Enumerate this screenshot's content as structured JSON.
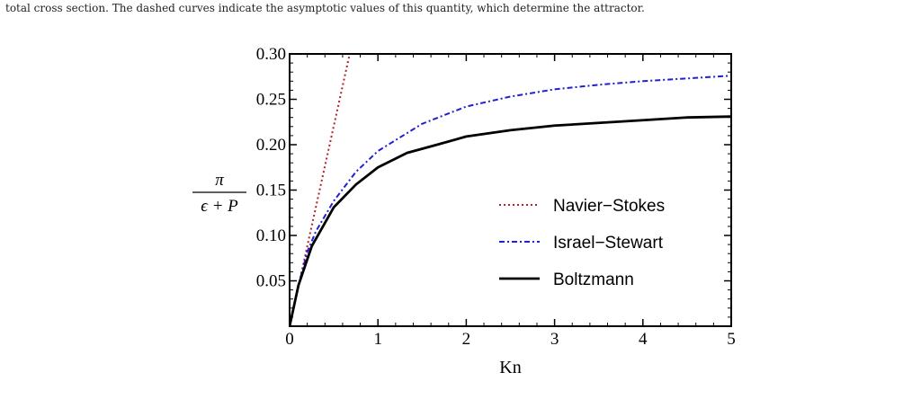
{
  "caption": "total cross section. The dashed curves indicate the asymptotic values of this quantity, which determine the attractor.",
  "chart_data": {
    "type": "line",
    "xlabel": "Kn",
    "ylabel_numerator": "π",
    "ylabel_denominator": "ϵ + P",
    "xlim": [
      0,
      5
    ],
    "ylim": [
      0,
      0.3
    ],
    "xticks": [
      0,
      1,
      2,
      3,
      4,
      5
    ],
    "xtick_labels": [
      "0",
      "1",
      "2",
      "3",
      "4",
      "5"
    ],
    "yticks": [
      0.05,
      0.1,
      0.15,
      0.2,
      0.25,
      0.3
    ],
    "ytick_labels": [
      "0.05",
      "0.10",
      "0.15",
      "0.20",
      "0.25",
      "0.30"
    ],
    "legend_position": "center-right",
    "series": [
      {
        "name": "Navier−Stokes",
        "color": "#b22222",
        "style": "dotted",
        "x": [
          0,
          0.68
        ],
        "y": [
          0,
          0.3
        ]
      },
      {
        "name": "Israel−Stewart",
        "color": "#1f1fd6",
        "style": "dashdot",
        "x": [
          0,
          0.1,
          0.2,
          0.3,
          0.5,
          0.75,
          1.0,
          1.5,
          2.0,
          2.5,
          3.0,
          3.5,
          4.0,
          4.5,
          5.0
        ],
        "y": [
          0,
          0.045,
          0.082,
          0.105,
          0.138,
          0.17,
          0.193,
          0.223,
          0.242,
          0.253,
          0.261,
          0.266,
          0.27,
          0.273,
          0.276
        ]
      },
      {
        "name": "Boltzmann",
        "color": "#000000",
        "style": "solid",
        "x": [
          0,
          0.1,
          0.25,
          0.5,
          0.75,
          1.0,
          1.33,
          1.67,
          2.0,
          2.5,
          3.0,
          3.5,
          4.0,
          4.5,
          5.0
        ],
        "y": [
          0,
          0.045,
          0.088,
          0.131,
          0.156,
          0.175,
          0.191,
          0.2,
          0.209,
          0.216,
          0.221,
          0.224,
          0.227,
          0.23,
          0.231
        ]
      }
    ]
  }
}
